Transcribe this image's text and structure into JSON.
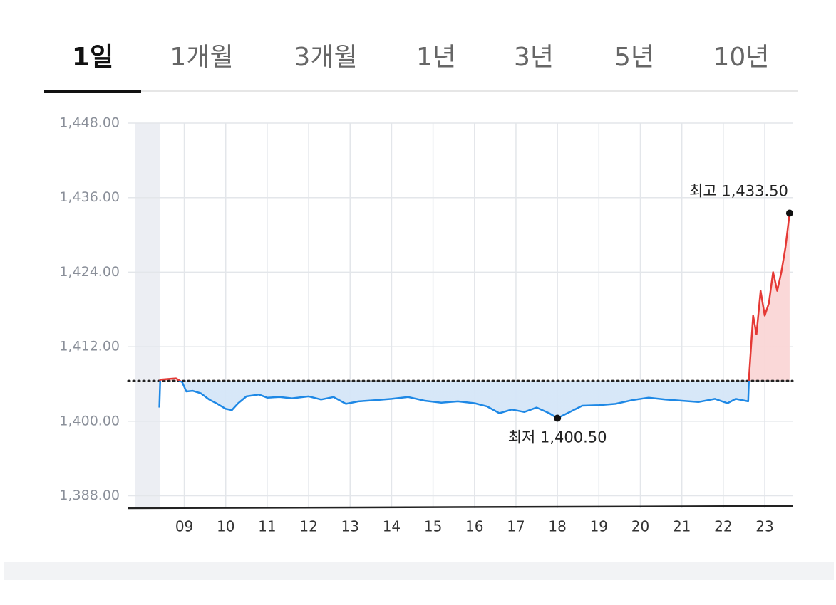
{
  "tabs": {
    "items": [
      "1일",
      "1개월",
      "3개월",
      "1년",
      "3년",
      "5년",
      "10년"
    ],
    "active": 0
  },
  "chart_data": {
    "type": "line",
    "x": [
      8.4,
      8.42,
      8.6,
      8.8,
      8.95,
      9.05,
      9.2,
      9.4,
      9.6,
      9.8,
      10.0,
      10.15,
      10.3,
      10.5,
      10.8,
      11.0,
      11.3,
      11.6,
      12.0,
      12.3,
      12.6,
      12.9,
      13.2,
      13.6,
      14.0,
      14.4,
      14.8,
      15.2,
      15.6,
      16.0,
      16.3,
      16.6,
      16.9,
      17.2,
      17.5,
      17.8,
      18.0,
      18.3,
      18.6,
      19.0,
      19.4,
      19.8,
      20.2,
      20.6,
      21.0,
      21.4,
      21.8,
      22.1,
      22.3,
      22.6,
      22.62,
      22.67,
      22.72,
      22.8,
      22.9,
      23.0,
      23.1,
      23.2,
      23.3,
      23.4,
      23.5,
      23.6
    ],
    "series": [
      {
        "values": [
          1402.2,
          1406.7,
          1406.8,
          1406.9,
          1406.3,
          1404.8,
          1404.9,
          1404.5,
          1403.5,
          1402.8,
          1402.0,
          1401.8,
          1402.9,
          1404.0,
          1404.3,
          1403.8,
          1403.9,
          1403.7,
          1404.0,
          1403.5,
          1403.9,
          1402.8,
          1403.2,
          1403.4,
          1403.6,
          1403.9,
          1403.3,
          1403.0,
          1403.2,
          1402.9,
          1402.4,
          1401.3,
          1401.9,
          1401.5,
          1402.2,
          1401.3,
          1400.5,
          1401.5,
          1402.5,
          1402.6,
          1402.8,
          1403.4,
          1403.8,
          1403.5,
          1403.3,
          1403.1,
          1403.6,
          1402.9,
          1403.6,
          1403.2,
          1407,
          1412,
          1417,
          1414,
          1421,
          1417,
          1419,
          1424,
          1421,
          1424,
          1428,
          1433.5
        ],
        "color_up": "#e53935",
        "color_down": "#1e88e5",
        "fill_up": "#fad6d6",
        "fill_down": "#d5e6f8"
      }
    ],
    "reference_value": 1406.5,
    "xlim": [
      7.65,
      23.67
    ],
    "xticks": [
      {
        "value": 9,
        "label": "09"
      },
      10,
      11,
      12,
      13,
      14,
      15,
      16,
      17,
      18,
      19,
      20,
      21,
      22,
      23
    ],
    "ylim": [
      1386,
      1448
    ],
    "yticks": [
      {
        "value": 1448,
        "label": "1,448.00"
      },
      {
        "value": 1436,
        "label": "1,436.00"
      },
      {
        "value": 1424,
        "label": "1,424.00"
      },
      {
        "value": 1412,
        "label": "1,412.00"
      },
      {
        "value": 1400,
        "label": "1,400.00"
      },
      {
        "value": 1388,
        "label": "1,388.00"
      }
    ],
    "grid": true,
    "annotations": [
      {
        "label": "최고 1,433.50",
        "x": 23.6,
        "y": 1433.5
      },
      {
        "label": "최저 1,400.50",
        "x": 18,
        "y": 1400.5
      }
    ]
  }
}
